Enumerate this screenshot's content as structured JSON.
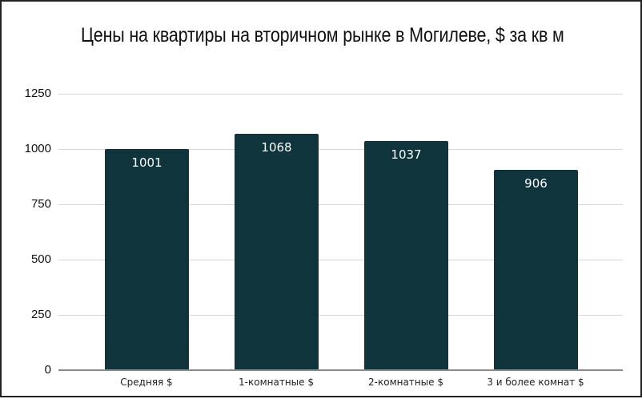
{
  "chart_data": {
    "type": "bar",
    "title": "Цены на квартиры на вторичном рынке в Могилеве, $ за кв м",
    "xlabel": "",
    "ylabel": "",
    "categories": [
      "Средняя $",
      "1-комнатные $",
      "2-комнатные $",
      "3 и более комнат $"
    ],
    "values": [
      1001,
      1068,
      1037,
      906
    ],
    "data_labels": [
      "1001",
      "1068",
      "1037",
      "906"
    ],
    "ylim": [
      0,
      1250
    ],
    "yticks": [
      "0",
      "250",
      "500",
      "750",
      "1000",
      "1250"
    ],
    "grid": true,
    "legend": "none",
    "bar_color": "#0f343c"
  }
}
